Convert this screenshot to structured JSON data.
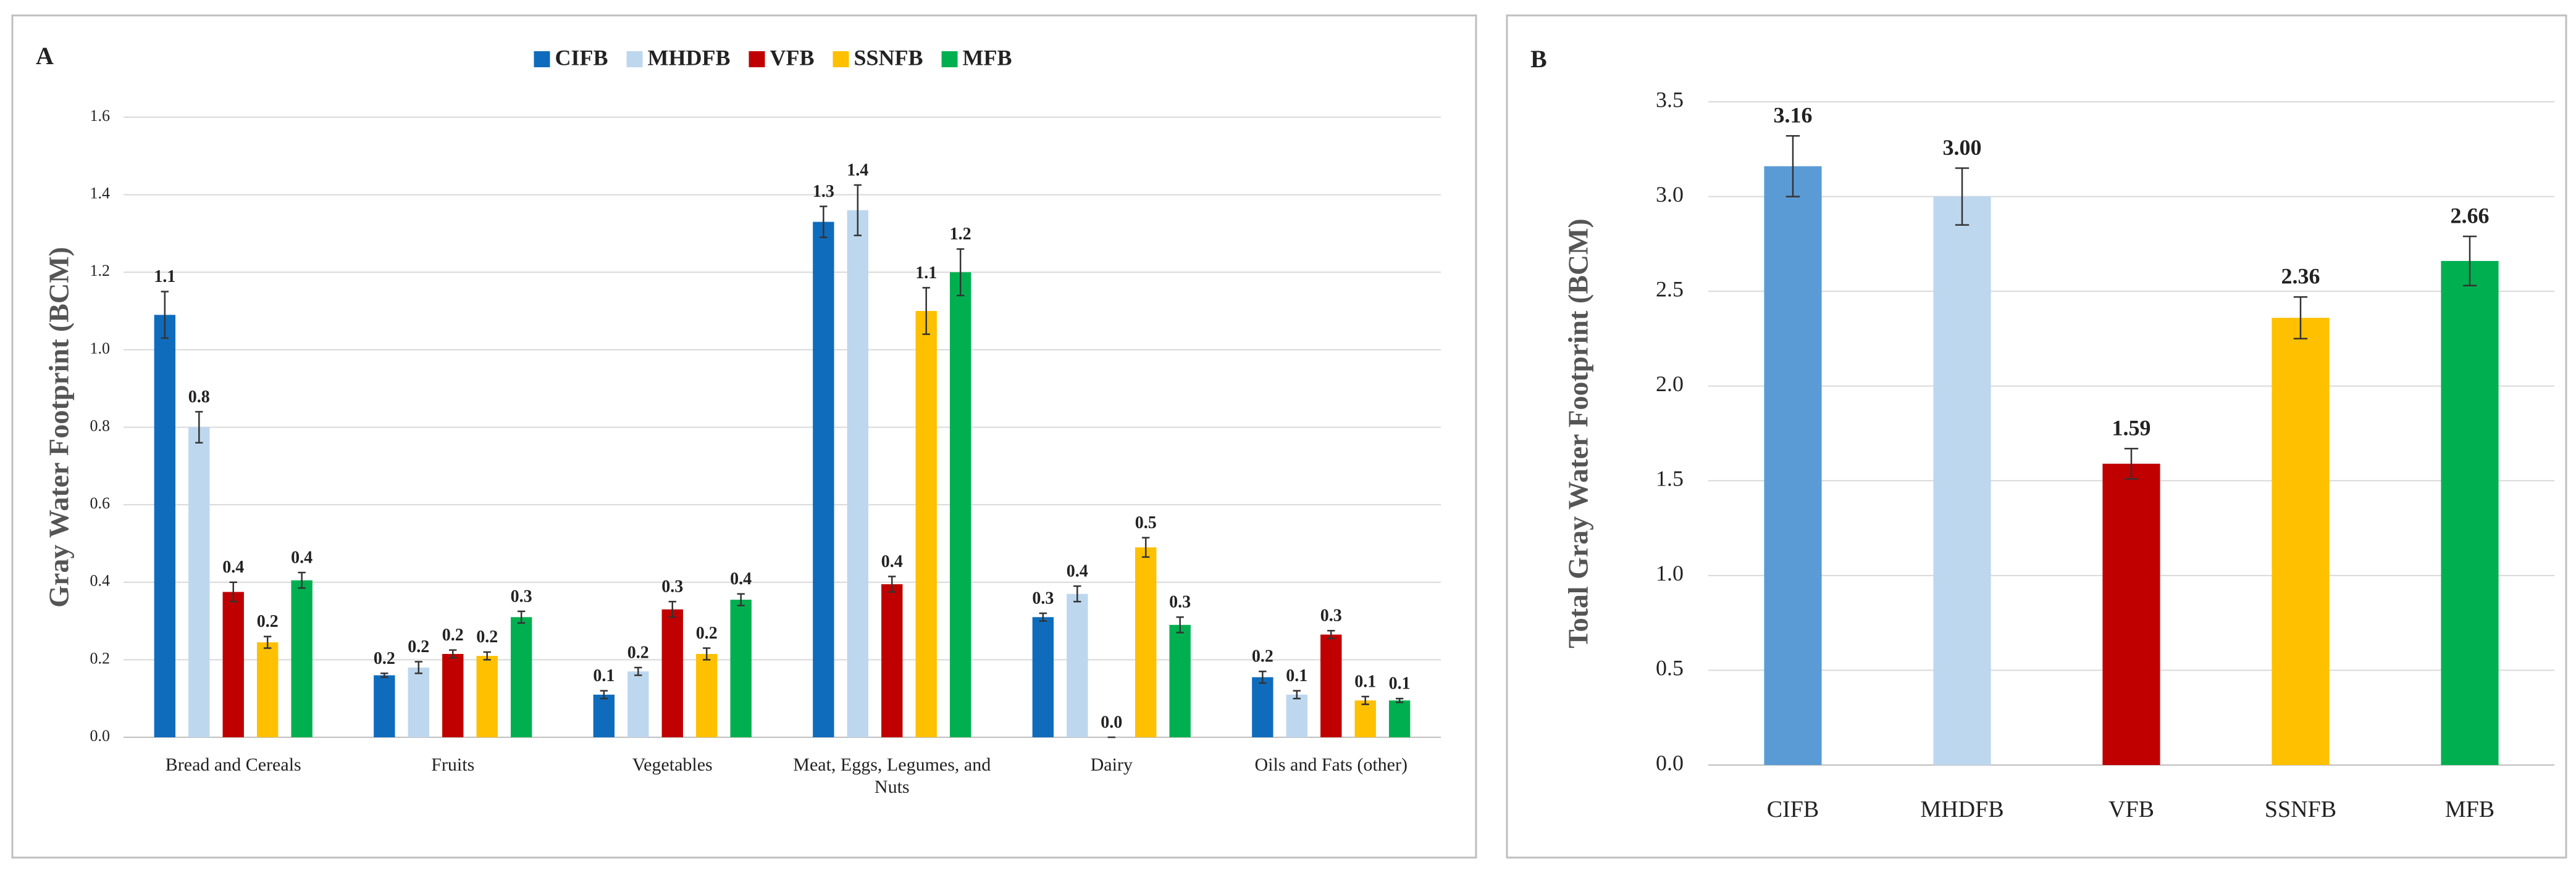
{
  "chart_data": [
    {
      "type": "bar",
      "panel": "A",
      "y_label": "Gray Water Footprint (BCM)",
      "categories": [
        "Bread and Cereals",
        "Fruits",
        "Vegetables",
        "Meat, Eggs, Legumes, and Nuts",
        "Dairy",
        "Oils and Fats (other)"
      ],
      "series": [
        {
          "name": "CIFB",
          "color": "#0f6cbd",
          "values": [
            1.09,
            0.16,
            0.11,
            1.33,
            0.31,
            0.155
          ],
          "errors": [
            0.06,
            0.005,
            0.01,
            0.04,
            0.01,
            0.015
          ],
          "value_labels": [
            "1.1",
            "0.2",
            "0.1",
            "1.3",
            "0.3",
            "0.2"
          ]
        },
        {
          "name": "MHDFB",
          "color": "#bdd7ee",
          "values": [
            0.8,
            0.18,
            0.17,
            1.36,
            0.37,
            0.11
          ],
          "errors": [
            0.04,
            0.015,
            0.01,
            0.065,
            0.02,
            0.01
          ],
          "value_labels": [
            "0.8",
            "0.2",
            "0.2",
            "1.4",
            "0.4",
            "0.1"
          ]
        },
        {
          "name": "VFB",
          "color": "#c00000",
          "values": [
            0.375,
            0.215,
            0.33,
            0.395,
            0,
            0.265
          ],
          "errors": [
            0.025,
            0.01,
            0.02,
            0.02,
            0,
            0.01
          ],
          "value_labels": [
            "0.4",
            "0.2",
            "0.3",
            "0.4",
            "0.0",
            "0.3"
          ]
        },
        {
          "name": "SSNFB",
          "color": "#ffc000",
          "values": [
            0.245,
            0.21,
            0.215,
            1.1,
            0.49,
            0.095
          ],
          "errors": [
            0.015,
            0.01,
            0.015,
            0.06,
            0.025,
            0.01
          ],
          "value_labels": [
            "0.2",
            "0.2",
            "0.2",
            "1.1",
            "0.5",
            "0.1"
          ]
        },
        {
          "name": "MFB",
          "color": "#00b050",
          "values": [
            0.405,
            0.31,
            0.355,
            1.2,
            0.29,
            0.095
          ],
          "errors": [
            0.02,
            0.015,
            0.015,
            0.06,
            0.02,
            0.005
          ],
          "value_labels": [
            "0.4",
            "0.3",
            "0.4",
            "1.2",
            "0.3",
            "0.1"
          ]
        }
      ],
      "ylim": [
        0,
        1.6
      ],
      "yticks": [
        {
          "value": 0,
          "label": "0.0"
        },
        0.2,
        0.4,
        0.6,
        0.8,
        {
          "value": 1,
          "label": "1.0"
        },
        1.2,
        1.4,
        1.6
      ],
      "grid": true,
      "legend": "top"
    },
    {
      "type": "bar",
      "panel": "B",
      "y_label": "Total Gray Water Footprint (BCM)",
      "categories": [
        "CIFB",
        "MHDFB",
        "VFB",
        "SSNFB",
        "MFB"
      ],
      "values": [
        3.16,
        3.0,
        1.59,
        2.36,
        2.66
      ],
      "errors": [
        0.16,
        0.15,
        0.08,
        0.11,
        0.13
      ],
      "value_labels": [
        "3.16",
        "3.00",
        "1.59",
        "2.36",
        "2.66"
      ],
      "colors": [
        "#5b9bd5",
        "#bdd7ee",
        "#c00000",
        "#ffc000",
        "#00b050"
      ],
      "ylim": [
        0,
        3.5
      ],
      "yticks": [
        {
          "value": 0,
          "label": "0.0"
        },
        0.5,
        {
          "value": 1,
          "label": "1.0"
        },
        1.5,
        {
          "value": 2,
          "label": "2.0"
        },
        2.5,
        {
          "value": 3,
          "label": "3.0"
        },
        3.5
      ],
      "grid": true
    }
  ]
}
